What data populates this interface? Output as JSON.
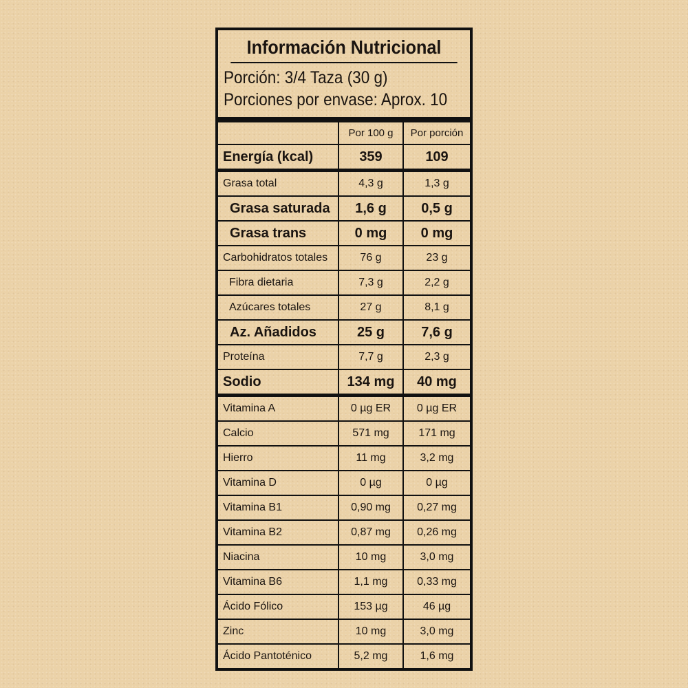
{
  "title": "Información Nutricional",
  "serving": {
    "portion": "Porción: 3/4 Taza (30 g)",
    "per_package": "Porciones por envase: Aprox. 10"
  },
  "columns": [
    "Por 100 g",
    "Por porción"
  ],
  "energy": {
    "label": "Energía (kcal)",
    "per100": "359",
    "perPortion": "109"
  },
  "nutrients": [
    {
      "label": "Grasa total",
      "per100": "4,3 g",
      "perPortion": "1,3 g",
      "style": ""
    },
    {
      "label": "Grasa saturada",
      "per100": "1,6 g",
      "perPortion": "0,5 g",
      "style": "bold ind1"
    },
    {
      "label": "Grasa trans",
      "per100": "0 mg",
      "perPortion": "0 mg",
      "style": "bold ind1"
    },
    {
      "label": "Carbohidratos totales",
      "per100": "76 g",
      "perPortion": "23 g",
      "style": ""
    },
    {
      "label": "Fibra dietaria",
      "per100": "7,3 g",
      "perPortion": "2,2 g",
      "style": "ind2"
    },
    {
      "label": "Azúcares totales",
      "per100": "27 g",
      "perPortion": "8,1 g",
      "style": "ind2"
    },
    {
      "label": "Az. Añadidos",
      "per100": "25 g",
      "perPortion": "7,6 g",
      "style": "bold ind1"
    },
    {
      "label": "Proteína",
      "per100": "7,7 g",
      "perPortion": "2,3 g",
      "style": ""
    },
    {
      "label": "Sodio",
      "per100": "134 mg",
      "perPortion": "40 mg",
      "style": "bold thick"
    }
  ],
  "vitamins": [
    {
      "label": "Vitamina A",
      "per100": "0 µg ER",
      "perPortion": "0 µg ER"
    },
    {
      "label": "Calcio",
      "per100": "571 mg",
      "perPortion": "171 mg"
    },
    {
      "label": "Hierro",
      "per100": "11 mg",
      "perPortion": "3,2 mg"
    },
    {
      "label": "Vitamina D",
      "per100": "0 µg",
      "perPortion": "0 µg"
    },
    {
      "label": "Vitamina B1",
      "per100": "0,90 mg",
      "perPortion": "0,27 mg"
    },
    {
      "label": "Vitamina B2",
      "per100": "0,87 mg",
      "perPortion": "0,26 mg"
    },
    {
      "label": "Niacina",
      "per100": "10 mg",
      "perPortion": "3,0 mg"
    },
    {
      "label": "Vitamina B6",
      "per100": "1,1 mg",
      "perPortion": "0,33 mg"
    },
    {
      "label": "Ácido Fólico",
      "per100": "153 µg",
      "perPortion": "46 µg"
    },
    {
      "label": "Zinc",
      "per100": "10 mg",
      "perPortion": "3,0 mg"
    },
    {
      "label": "Ácido Pantoténico",
      "per100": "5,2 mg",
      "perPortion": "1,6 mg"
    }
  ]
}
